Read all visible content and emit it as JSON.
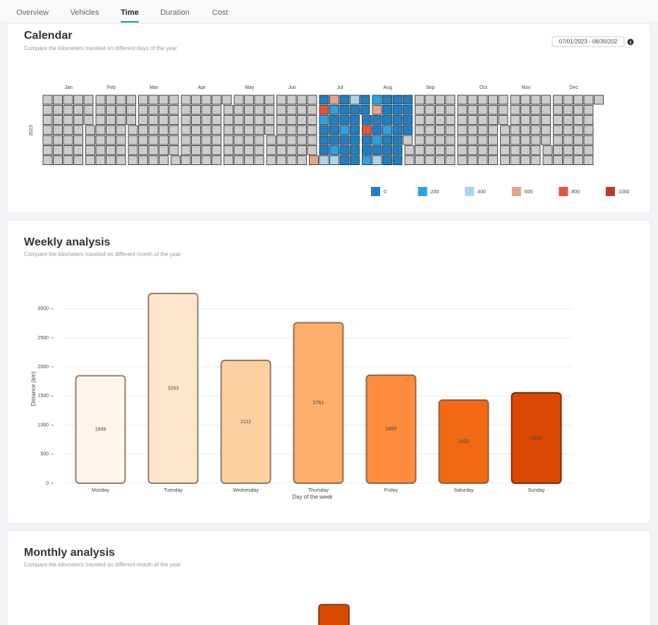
{
  "tabs": [
    "Overview",
    "Vehicles",
    "Time",
    "Duration",
    "Cost"
  ],
  "active_tab": 2,
  "calendar": {
    "title": "Calendar",
    "subtitle": "Compare the kilometers traveled on different days of the year",
    "date_range": "07/01/2023 - 08/30/202",
    "year_label": "2023",
    "months": [
      "Jan",
      "Feb",
      "Mar",
      "Apr",
      "May",
      "Jun",
      "Jul",
      "Aug",
      "Sep",
      "Oct",
      "Nov",
      "Dec"
    ],
    "values": [
      650,
      120,
      880,
      300,
      150,
      90,
      80,
      450,
      660,
      210,
      130,
      100,
      60,
      250,
      470,
      150,
      80,
      120,
      300,
      90,
      100,
      180,
      520,
      140,
      90,
      70,
      110,
      130,
      60,
      150,
      100,
      160,
      920,
      140,
      80,
      250,
      300,
      700,
      90,
      110,
      250,
      130,
      470,
      80,
      100,
      70,
      260,
      140,
      120,
      90,
      60,
      110,
      150,
      80,
      100,
      130,
      70,
      90,
      110,
      140,
      120
    ],
    "empty_color": "#cccccc",
    "legend": {
      "values": [
        0,
        200,
        400,
        600,
        800,
        1000
      ],
      "colors": [
        "#1f7fc4",
        "#2aa3e6",
        "#a9d4ee",
        "#e3a48f",
        "#e2553c",
        "#c0392b"
      ]
    }
  },
  "chart_data": {
    "type": "bar",
    "title": "Weekly analysis",
    "subtitle": "Compare the kilometers traveled on different month of the year",
    "categories": [
      "Monday",
      "Tuesday",
      "Wednesday",
      "Thursday",
      "Friday",
      "Saturday",
      "Sunday"
    ],
    "values": [
      1849,
      3263,
      2112,
      2761,
      1859,
      1432,
      1554
    ],
    "colors": [
      "#fff5eb",
      "#fee6ce",
      "#fdd0a2",
      "#fdae6b",
      "#fd8d3c",
      "#f16913",
      "#d94801"
    ],
    "xlabel": "Day of the week",
    "ylabel": "Distance (km)",
    "ylim": [
      0,
      3300
    ],
    "yticks": [
      0,
      500,
      1000,
      1500,
      2000,
      2500,
      3000
    ],
    "grid": true
  },
  "monthly": {
    "title": "Monthly analysis",
    "subtitle": "Compare the kilometers traveled on different month of the year"
  }
}
